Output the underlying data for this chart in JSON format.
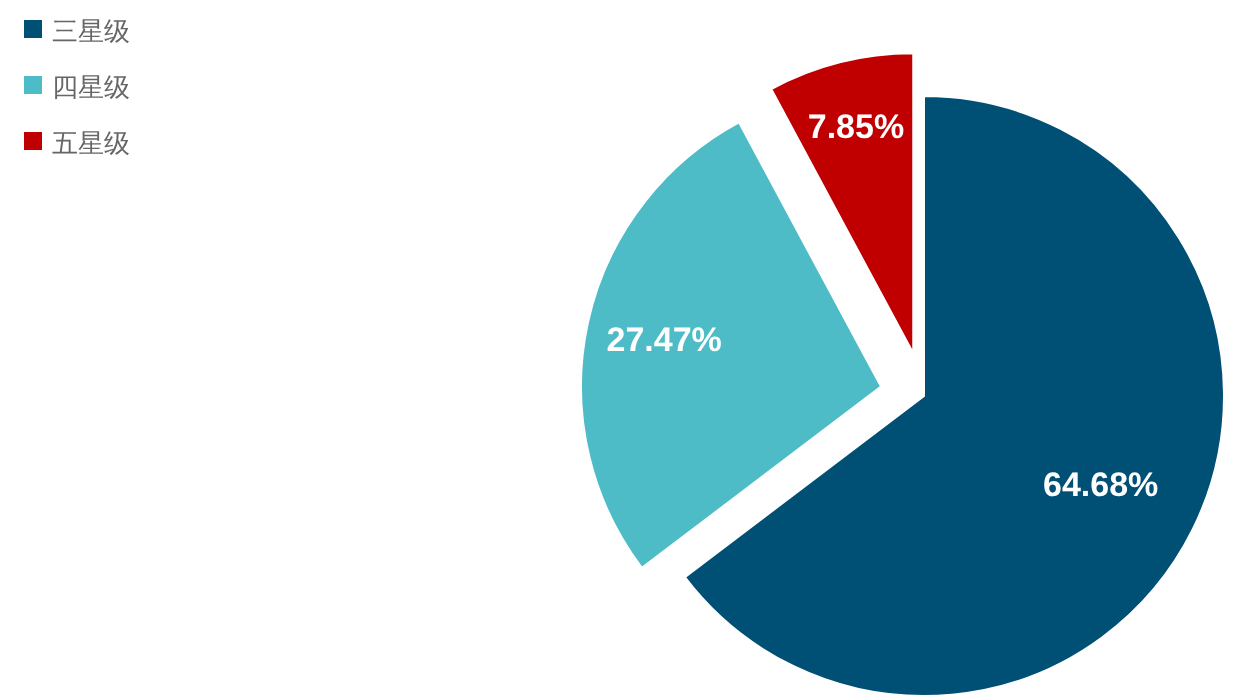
{
  "chart_data": {
    "type": "pie",
    "categories": [
      "三星级",
      "四星级",
      "五星级"
    ],
    "values": [
      64.68,
      27.47,
      7.85
    ],
    "colors": [
      "#004f74",
      "#4dbcc6",
      "#c00000"
    ],
    "value_labels": [
      "64.68%",
      "27.47%",
      "7.85%"
    ],
    "legend": "top left"
  }
}
